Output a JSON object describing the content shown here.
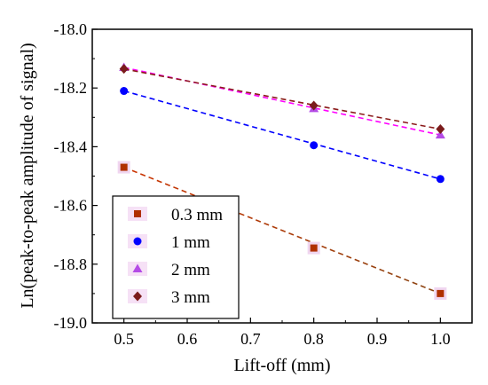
{
  "chart_data": {
    "type": "scatter",
    "title": "",
    "xlabel": "Lift-off (mm)",
    "ylabel": "Ln(peak-to-peak amplitude of signal)",
    "xlim": [
      0.45,
      1.05
    ],
    "ylim": [
      -19.0,
      -18.0
    ],
    "xticks": [
      "0.5",
      "0.6",
      "0.7",
      "0.8",
      "0.9",
      "1.0"
    ],
    "xtick_values": [
      0.5,
      0.6,
      0.7,
      0.8,
      0.9,
      1.0
    ],
    "yticks": [
      "-18.0",
      "-18.2",
      "-18.4",
      "-18.6",
      "-18.8",
      "-19.0"
    ],
    "ytick_values": [
      -18.0,
      -18.2,
      -18.4,
      -18.6,
      -18.8,
      -19.0
    ],
    "grid": false,
    "legend_position": "bottom-left",
    "x": [
      0.5,
      0.8,
      1.0
    ],
    "series": [
      {
        "name": "0.3 mm",
        "values": [
          -18.47,
          -18.745,
          -18.9
        ],
        "marker": "square",
        "marker_color": "#b03000",
        "line_color": "#cc3300",
        "line_color_end": "#8b4513",
        "marker_highlight": "#f0d6f0"
      },
      {
        "name": "1 mm",
        "values": [
          -18.21,
          -18.395,
          -18.51
        ],
        "marker": "circle",
        "marker_color": "#0000ff",
        "line_color": "#0000ff"
      },
      {
        "name": "2 mm",
        "values": [
          -18.13,
          -18.27,
          -18.36
        ],
        "marker": "triangle",
        "marker_color": "#b44be6",
        "line_color": "#ff00ff"
      },
      {
        "name": "3 mm",
        "values": [
          -18.135,
          -18.26,
          -18.34
        ],
        "marker": "diamond",
        "marker_color": "#7b1c1c",
        "line_color": "#8b1a1a"
      }
    ]
  }
}
